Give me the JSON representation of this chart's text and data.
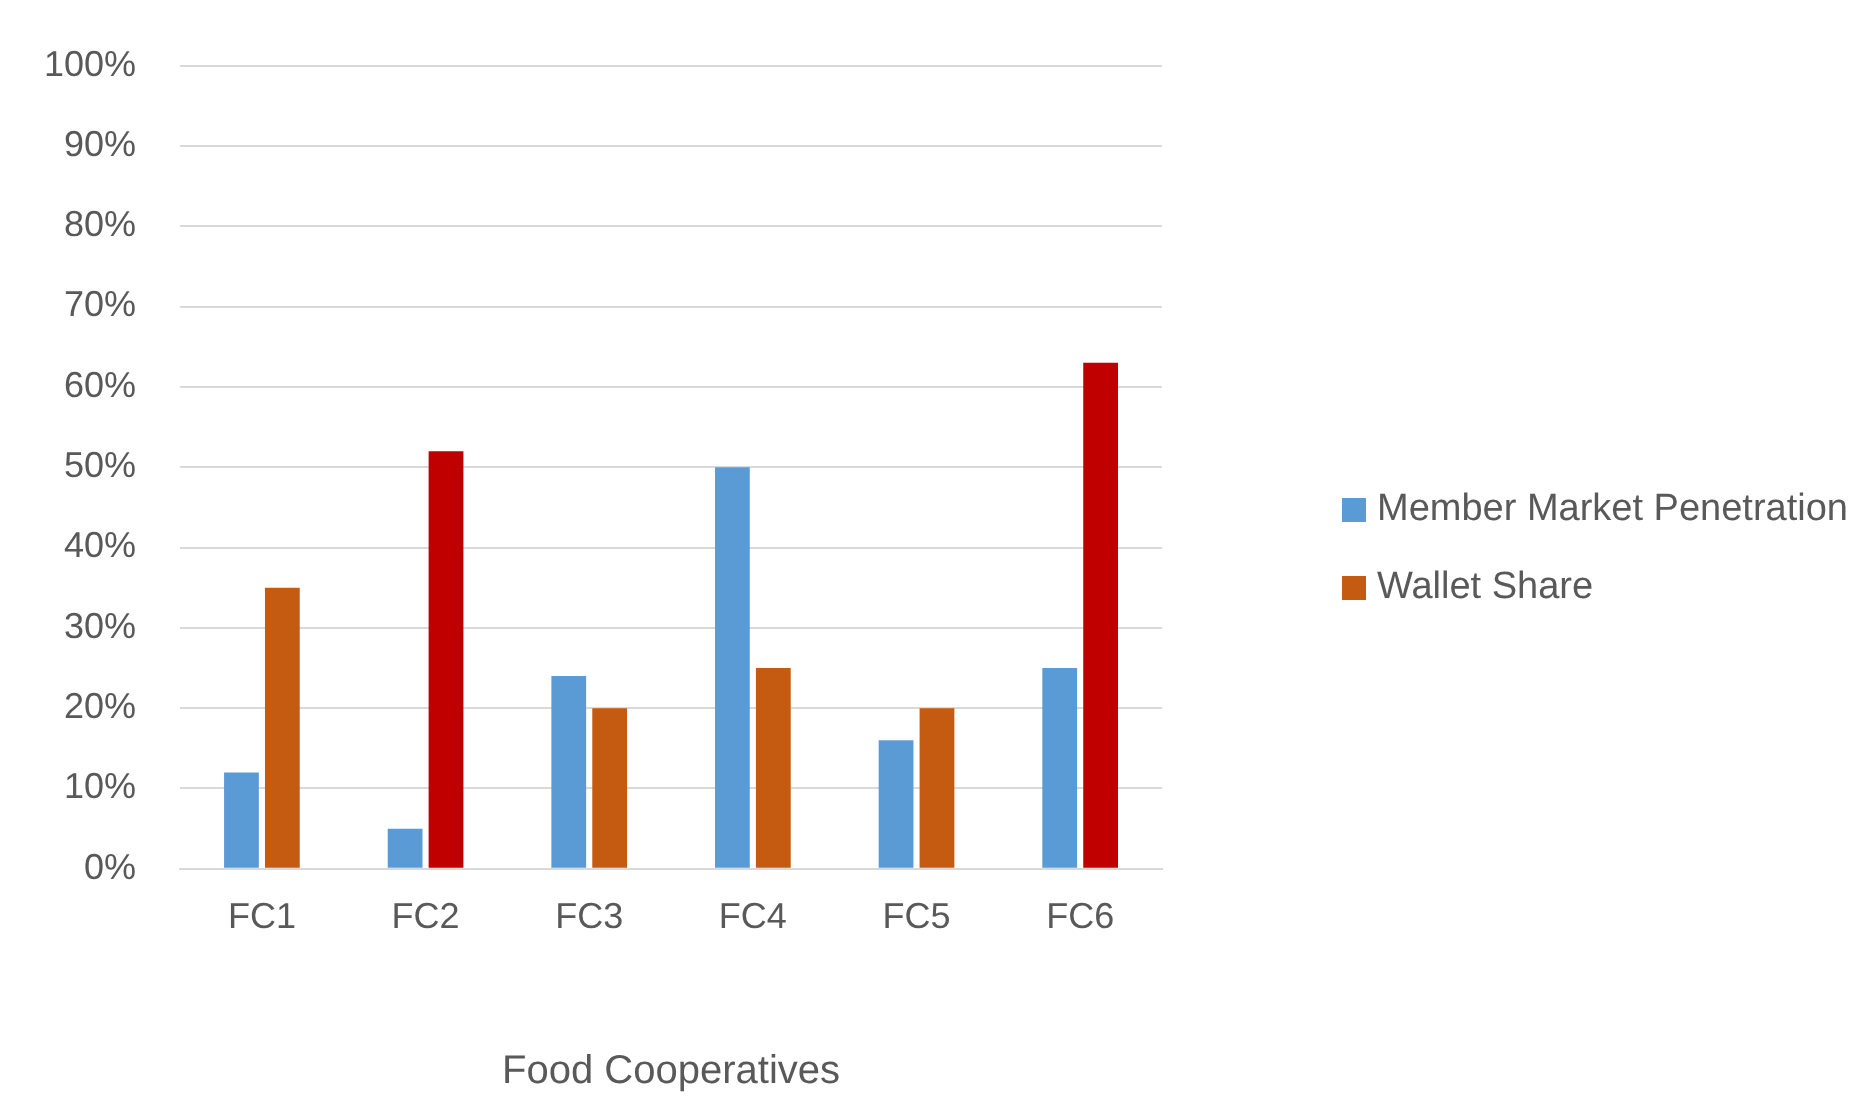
{
  "chart_data": {
    "type": "bar",
    "xlabel": "Food Cooperatives",
    "categories": [
      "FC1",
      "FC2",
      "FC3",
      "FC4",
      "FC5",
      "FC6"
    ],
    "series": [
      {
        "name": "Member Market Penetration",
        "color": "#5b9bd5",
        "values": [
          12,
          5,
          24,
          50,
          16,
          25
        ]
      },
      {
        "name": "Wallet Share",
        "color": "#c55a11",
        "colors": [
          "#c55a11",
          "#c00000",
          "#c55a11",
          "#c55a11",
          "#c55a11",
          "#c00000"
        ],
        "values": [
          35,
          52,
          20,
          25,
          20,
          63
        ]
      }
    ],
    "ylim": [
      0,
      100
    ],
    "yticks": [
      {
        "value": 0,
        "label": "0%"
      },
      {
        "value": 10,
        "label": "10%"
      },
      {
        "value": 20,
        "label": "20%"
      },
      {
        "value": 30,
        "label": "30%"
      },
      {
        "value": 40,
        "label": "40%"
      },
      {
        "value": 50,
        "label": "50%"
      },
      {
        "value": 60,
        "label": "60%"
      },
      {
        "value": 70,
        "label": "70%"
      },
      {
        "value": 80,
        "label": "80%"
      },
      {
        "value": 90,
        "label": "90%"
      },
      {
        "value": 100,
        "label": "100%"
      }
    ],
    "grid": "y",
    "legend": "right"
  }
}
